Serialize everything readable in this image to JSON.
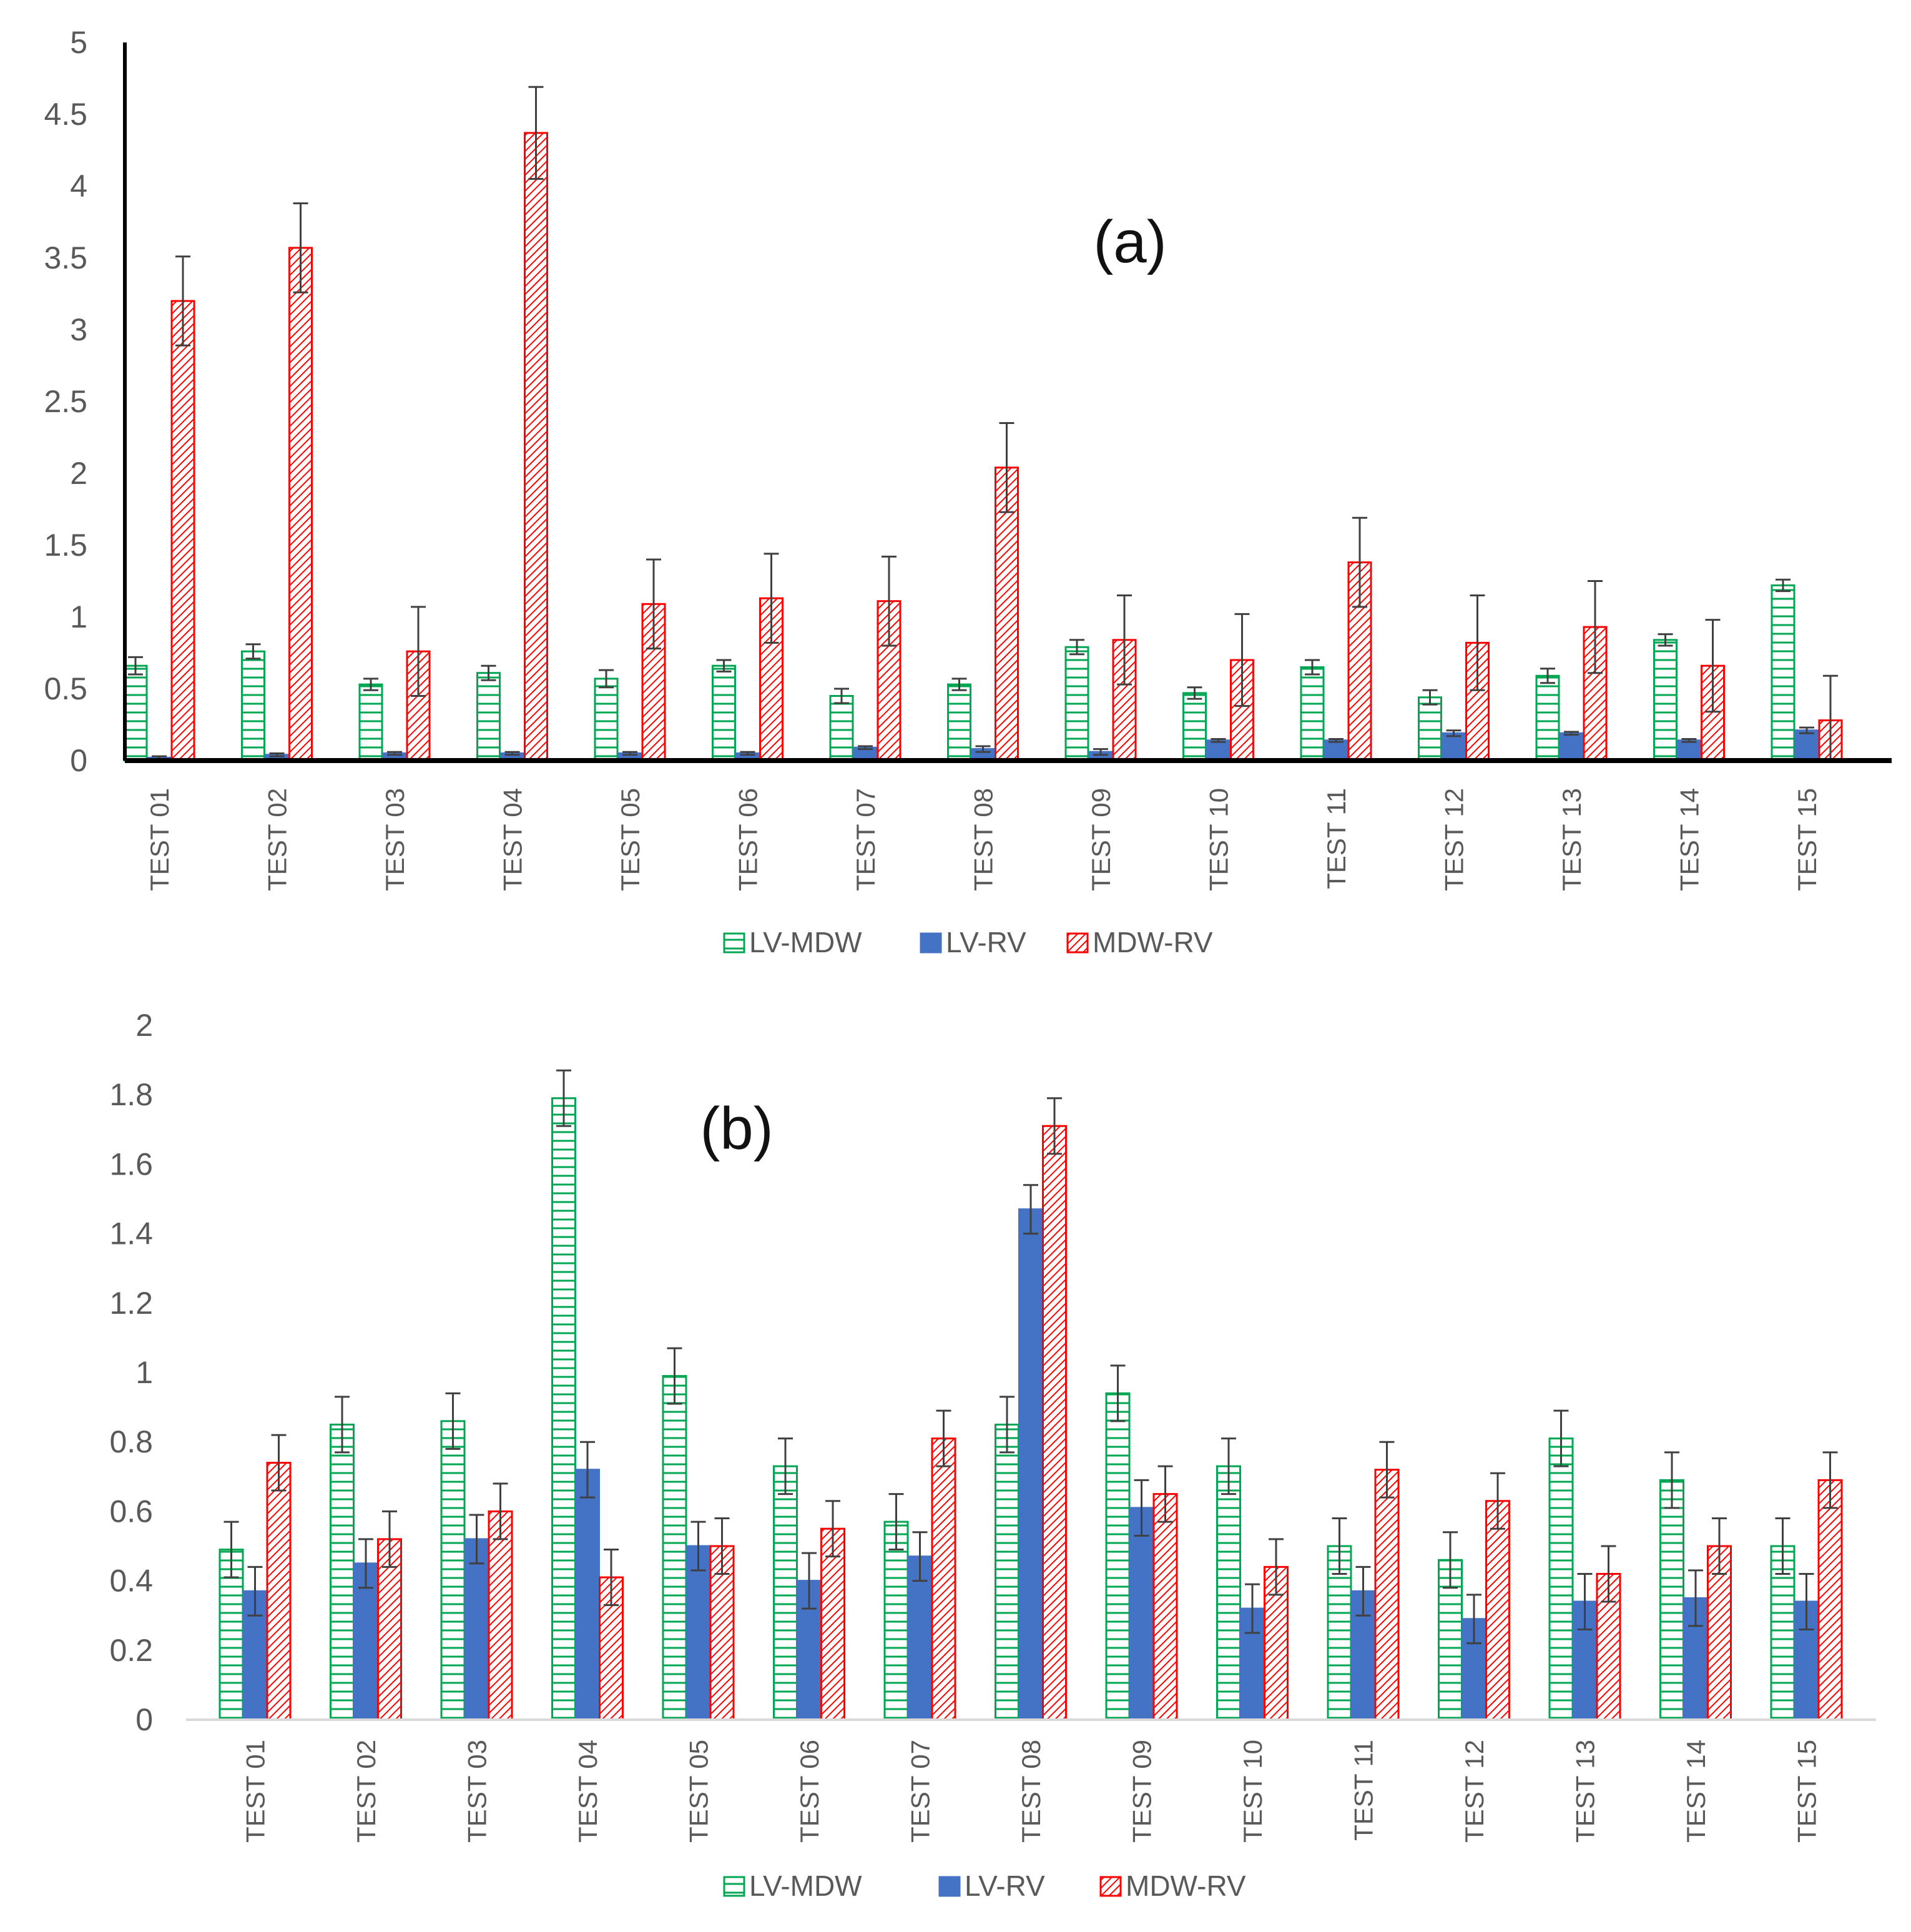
{
  "colors": {
    "lv_mdw": "#00a651",
    "lv_rv": "#4472c4",
    "mdw_rv": "#ff0000",
    "error_bar": "#404040",
    "axis_a": "#000000",
    "axis_b": "#d9d9d9",
    "text": "#595959"
  },
  "chart_data": [
    {
      "id": "a",
      "type": "bar",
      "panel_label": "(a)",
      "categories": [
        "TEST 01",
        "TEST 02",
        "TEST 03",
        "TEST 04",
        "TEST 05",
        "TEST 06",
        "TEST 07",
        "TEST 08",
        "TEST 09",
        "TEST 10",
        "TEST 11",
        "TEST 12",
        "TEST 13",
        "TEST 14",
        "TEST 15"
      ],
      "ylim": [
        0,
        5
      ],
      "yticks": [
        "0",
        "0.5",
        "1",
        "1.5",
        "2",
        "2.5",
        "3",
        "3.5",
        "4",
        "4.5",
        "5"
      ],
      "ytick_values": [
        0,
        0.5,
        1,
        1.5,
        2,
        2.5,
        3,
        3.5,
        4,
        4.5,
        5
      ],
      "legend_position": "bottom",
      "series": [
        {
          "name": "LV-MDW",
          "pattern": "horizontal-lines",
          "values": [
            0.66,
            0.76,
            0.53,
            0.61,
            0.57,
            0.66,
            0.45,
            0.53,
            0.79,
            0.47,
            0.65,
            0.44,
            0.59,
            0.84,
            1.22
          ],
          "errors": [
            0.06,
            0.05,
            0.04,
            0.05,
            0.06,
            0.04,
            0.05,
            0.04,
            0.05,
            0.04,
            0.05,
            0.05,
            0.05,
            0.04,
            0.04
          ]
        },
        {
          "name": "LV-RV",
          "pattern": "solid",
          "values": [
            0.02,
            0.04,
            0.05,
            0.05,
            0.05,
            0.05,
            0.09,
            0.08,
            0.06,
            0.14,
            0.14,
            0.19,
            0.19,
            0.14,
            0.21
          ],
          "errors": [
            0.01,
            0.01,
            0.01,
            0.01,
            0.01,
            0.01,
            0.01,
            0.02,
            0.02,
            0.01,
            0.01,
            0.02,
            0.01,
            0.01,
            0.02
          ]
        },
        {
          "name": "MDW-RV",
          "pattern": "diagonal-stripes",
          "values": [
            3.2,
            3.57,
            0.76,
            4.37,
            1.09,
            1.13,
            1.11,
            2.04,
            0.84,
            0.7,
            1.38,
            0.82,
            0.93,
            0.66,
            0.28
          ],
          "errors": [
            0.31,
            0.31,
            0.31,
            0.32,
            0.31,
            0.31,
            0.31,
            0.31,
            0.31,
            0.32,
            0.31,
            0.33,
            0.32,
            0.32,
            0.31
          ]
        }
      ]
    },
    {
      "id": "b",
      "type": "bar",
      "panel_label": "(b)",
      "categories": [
        "TEST 01",
        "TEST 02",
        "TEST 03",
        "TEST 04",
        "TEST 05",
        "TEST 06",
        "TEST 07",
        "TEST 08",
        "TEST 09",
        "TEST 10",
        "TEST 11",
        "TEST 12",
        "TEST 13",
        "TEST 14",
        "TEST 15"
      ],
      "ylim": [
        0,
        2
      ],
      "yticks": [
        "0",
        "0.2",
        "0.4",
        "0.6",
        "0.8",
        "1",
        "1.2",
        "1.4",
        "1.6",
        "1.8",
        "2"
      ],
      "ytick_values": [
        0,
        0.2,
        0.4,
        0.6,
        0.8,
        1,
        1.2,
        1.4,
        1.6,
        1.8,
        2
      ],
      "legend_position": "bottom",
      "series": [
        {
          "name": "LV-MDW",
          "pattern": "horizontal-lines",
          "values": [
            0.49,
            0.85,
            0.86,
            1.79,
            0.99,
            0.73,
            0.57,
            0.85,
            0.94,
            0.73,
            0.5,
            0.46,
            0.81,
            0.69,
            0.5
          ],
          "errors": [
            0.08,
            0.08,
            0.08,
            0.08,
            0.08,
            0.08,
            0.08,
            0.08,
            0.08,
            0.08,
            0.08,
            0.08,
            0.08,
            0.08,
            0.08
          ]
        },
        {
          "name": "LV-RV",
          "pattern": "solid",
          "values": [
            0.37,
            0.45,
            0.52,
            0.72,
            0.5,
            0.4,
            0.47,
            1.47,
            0.61,
            0.32,
            0.37,
            0.29,
            0.34,
            0.35,
            0.34
          ],
          "errors": [
            0.07,
            0.07,
            0.07,
            0.08,
            0.07,
            0.08,
            0.07,
            0.07,
            0.08,
            0.07,
            0.07,
            0.07,
            0.08,
            0.08,
            0.08
          ]
        },
        {
          "name": "MDW-RV",
          "pattern": "diagonal-stripes",
          "values": [
            0.74,
            0.52,
            0.6,
            0.41,
            0.5,
            0.55,
            0.81,
            1.71,
            0.65,
            0.44,
            0.72,
            0.63,
            0.42,
            0.5,
            0.69
          ],
          "errors": [
            0.08,
            0.08,
            0.08,
            0.08,
            0.08,
            0.08,
            0.08,
            0.08,
            0.08,
            0.08,
            0.08,
            0.08,
            0.08,
            0.08,
            0.08
          ]
        }
      ]
    }
  ]
}
